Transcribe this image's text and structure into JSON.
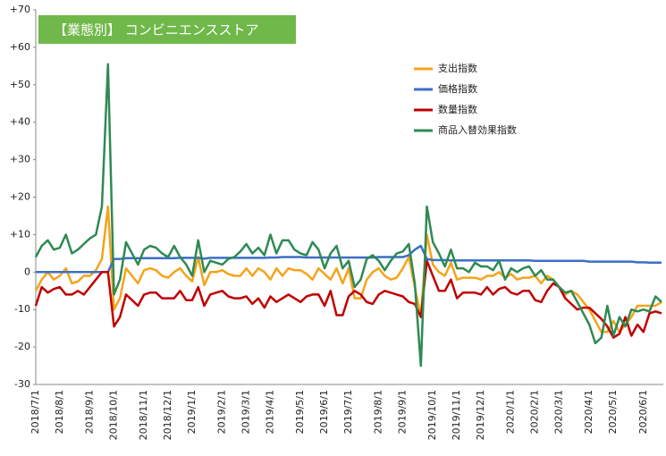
{
  "chart_data": {
    "type": "line",
    "title": "【業態別】 コンビニエンスストア",
    "title_color": "#70b84a",
    "categories": [
      "2018/7/1",
      null,
      null,
      null,
      "2018/8/1",
      null,
      null,
      null,
      null,
      "2018/9/1",
      null,
      null,
      null,
      "2018/10/1",
      null,
      null,
      null,
      null,
      "2018/11/1",
      null,
      null,
      null,
      "2018/12/1",
      null,
      null,
      null,
      "2019/1/1",
      null,
      null,
      null,
      null,
      "2019/2/1",
      null,
      null,
      null,
      "2019/3/1",
      null,
      null,
      null,
      "2019/4/1",
      null,
      null,
      null,
      null,
      "2019/5/1",
      null,
      null,
      null,
      "2019/6/1",
      null,
      null,
      null,
      "2019/7/1",
      null,
      null,
      null,
      null,
      "2019/8/1",
      null,
      null,
      null,
      "2019/9/1",
      null,
      null,
      null,
      null,
      "2019/10/1",
      null,
      null,
      null,
      "2019/11/1",
      null,
      null,
      null,
      "2019/12/1",
      null,
      null,
      null,
      null,
      "2020/1/1",
      null,
      null,
      null,
      "2020/2/1",
      null,
      null,
      null,
      "2020/3/1",
      null,
      null,
      null,
      null,
      "2020/4/1",
      null,
      null,
      null,
      "2020/5/1",
      null,
      null,
      null,
      null,
      "2020/6/1",
      null,
      null,
      null
    ],
    "series": [
      {
        "name": "支出指数",
        "color": "#f5a31a",
        "values": [
          -5,
          -2,
          0,
          -2,
          -1,
          1,
          -3,
          -2.5,
          -1,
          -1,
          0.5,
          3.5,
          17.5,
          -10,
          -7,
          1,
          -1,
          -3,
          0.5,
          1,
          0.5,
          -1,
          -1.5,
          0,
          1,
          -1,
          -2.5,
          4,
          -3.5,
          0,
          0,
          0.5,
          -0.5,
          -1,
          -1,
          1,
          -1,
          1,
          0,
          -2,
          1,
          -1,
          1,
          0.5,
          0.5,
          -0.5,
          -2,
          1,
          -0.5,
          -2,
          1,
          -3,
          1,
          -7,
          -7,
          -2,
          0,
          1,
          -1,
          -2,
          -1.5,
          1,
          4,
          -4,
          -12,
          10,
          2,
          0,
          -1,
          2.5,
          -2,
          -1.5,
          -1.5,
          -1.5,
          -2,
          -1,
          -1,
          0,
          -1.5,
          -0.5,
          -2,
          -1.5,
          -1.5,
          -1,
          -3,
          -1,
          -2,
          -4,
          -6,
          -5,
          -6,
          -8,
          -10,
          -13,
          -16,
          -16,
          -13,
          -16,
          -14,
          -12,
          -9,
          -9,
          -9,
          -9,
          -8
        ]
      },
      {
        "name": "価格指数",
        "color": "#3b6fc6",
        "values": [
          0,
          0,
          0,
          0,
          0,
          0,
          0,
          0,
          0,
          0,
          0,
          0,
          0,
          3.5,
          3.5,
          3.7,
          3.7,
          3.7,
          3.7,
          3.7,
          3.7,
          3.7,
          3.7,
          3.7,
          3.8,
          3.8,
          3.8,
          3.8,
          3.6,
          3.8,
          3.8,
          3.8,
          3.8,
          3.8,
          3.8,
          3.8,
          3.8,
          3.8,
          3.8,
          3.9,
          3.9,
          4,
          4,
          4,
          4,
          3.9,
          3.9,
          3.9,
          3.9,
          3.9,
          3.9,
          3.9,
          3.9,
          3.9,
          3.9,
          3.9,
          3.9,
          4,
          4,
          4,
          4,
          4,
          4.5,
          6,
          7,
          3.5,
          3.2,
          3.2,
          3.2,
          3.1,
          3.1,
          3.1,
          3.1,
          3.1,
          3.1,
          3.1,
          3.1,
          3.1,
          3.1,
          3.1,
          3.1,
          3.1,
          3.1,
          3,
          3,
          3,
          3,
          3,
          3,
          3,
          3,
          3,
          2.8,
          2.8,
          2.8,
          2.8,
          2.8,
          2.8,
          2.8,
          2.8,
          2.6,
          2.6,
          2.5,
          2.5,
          2.5
        ]
      },
      {
        "name": "数量指数",
        "color": "#c00000",
        "values": [
          -9,
          -4,
          -5.5,
          -4.5,
          -4,
          -6,
          -6,
          -5,
          -6,
          -4,
          -2,
          0,
          0,
          -14.5,
          -12,
          -6,
          -7.5,
          -9,
          -6,
          -5.5,
          -5.5,
          -7,
          -7,
          -7,
          -5,
          -7.5,
          -7.5,
          -4,
          -9,
          -6,
          -5.5,
          -5,
          -6.5,
          -7,
          -7,
          -6.5,
          -8.5,
          -7,
          -9.5,
          -6.5,
          -8,
          -7,
          -6,
          -7,
          -8,
          -6.5,
          -6,
          -6,
          -9,
          -5,
          -11.5,
          -11.5,
          -6.5,
          -5,
          -6,
          -8,
          -8.5,
          -6,
          -5,
          -5.5,
          -6,
          -6.5,
          -8,
          -8.5,
          -12,
          3,
          -1,
          -5,
          -5,
          -2,
          -7,
          -5.5,
          -5.5,
          -5.5,
          -6,
          -4,
          -6,
          -4.5,
          -4,
          -5.5,
          -6,
          -5,
          -5,
          -7.5,
          -8,
          -5,
          -3,
          -4,
          -7,
          -8.5,
          -10,
          -9.5,
          -9.5,
          -11,
          -12.5,
          -14.5,
          -17.5,
          -16.5,
          -12,
          -17,
          -14,
          -16,
          -11,
          -10.5,
          -11
        ]
      },
      {
        "name": "商品入替効果指数",
        "color": "#2e8a52",
        "values": [
          4,
          7,
          8.5,
          6,
          6.5,
          10,
          5,
          6,
          7.5,
          9,
          10,
          17.5,
          55.5,
          -6,
          -2,
          8,
          5,
          2,
          6,
          7,
          6.5,
          5,
          4,
          7,
          4,
          2,
          -1,
          8.5,
          0,
          3,
          2.5,
          2,
          3.5,
          4,
          5.5,
          7.5,
          5,
          6.5,
          4.5,
          10,
          5,
          8.5,
          8.5,
          6,
          5,
          4.5,
          8,
          6,
          1,
          5,
          7,
          1,
          3,
          -4,
          -2,
          3.5,
          4.5,
          3,
          0.5,
          3,
          5,
          5.5,
          7.5,
          -3,
          -25,
          17.5,
          8,
          5,
          1.5,
          6,
          1,
          1,
          0,
          2.5,
          1.5,
          1.5,
          0.5,
          3,
          -2,
          1,
          0,
          1,
          1.5,
          -1,
          0.5,
          -2,
          -2,
          -4,
          -5.5,
          -5,
          -8,
          -11,
          -14,
          -19,
          -17.5,
          -9,
          -17,
          -12,
          -14.5,
          -10,
          -10.5,
          -10,
          -10.5,
          -6.5,
          -8
        ]
      }
    ],
    "ylim": [
      -30,
      70
    ],
    "yticks": [
      {
        "value": 70,
        "label": "+70"
      },
      {
        "value": 60,
        "label": "+60"
      },
      {
        "value": 50,
        "label": "+50"
      },
      {
        "value": 40,
        "label": "+40"
      },
      {
        "value": 30,
        "label": "+30"
      },
      {
        "value": 20,
        "label": "+20"
      },
      {
        "value": 10,
        "label": "+10"
      },
      0,
      -10,
      -20,
      -30
    ],
    "grid": false,
    "legend": "upper-right"
  }
}
